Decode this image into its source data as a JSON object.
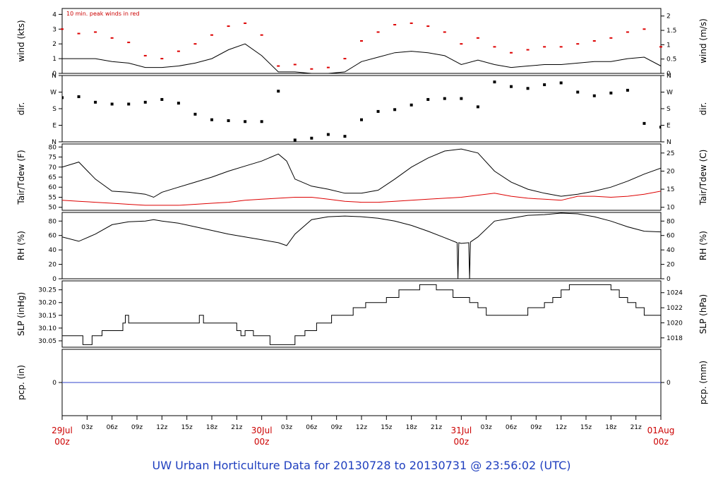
{
  "footer": "UW Urban Horticulture Data for 20130728  to  20130731 @ 23:56:02  (UTC)",
  "colors": {
    "primary": "#000000",
    "dewpoint": "#dd0000",
    "peak": "#dd0000",
    "precip": "#3344cc",
    "footer": "#1f3fbf",
    "day_label": "#cc0000"
  },
  "x_axis": {
    "range_hours": [
      0,
      72
    ],
    "hour_ticks": [
      "03z",
      "06z",
      "09z",
      "12z",
      "15z",
      "18z",
      "21z"
    ],
    "day_labels": [
      {
        "top": "29Jul",
        "bottom": "00z",
        "hour": 0
      },
      {
        "top": "30Jul",
        "bottom": "00z",
        "hour": 24
      },
      {
        "top": "31Jul",
        "bottom": "00z",
        "hour": 48
      },
      {
        "top": "01Aug",
        "bottom": "00z",
        "hour": 72
      }
    ]
  },
  "chart_data": [
    {
      "type": "line",
      "id": "wind",
      "ylabel": "wind (kts)",
      "ylabel_right": "wind (m/s)",
      "annotation": "10 min. peak winds in red",
      "ylim": [
        0,
        4.4
      ],
      "yticks": [
        "0",
        "1",
        "2",
        "3",
        "4"
      ],
      "yticks_right": [
        "0",
        "0.5",
        "1",
        "1.5",
        "2"
      ],
      "ylim_right": [
        0,
        2.264
      ],
      "series": [
        {
          "name": "wind",
          "color": "#000000",
          "x_hours": [
            0,
            2,
            4,
            6,
            8,
            10,
            12,
            14,
            16,
            18,
            20,
            22,
            24,
            26,
            28,
            30,
            32,
            34,
            36,
            38,
            40,
            42,
            44,
            46,
            48,
            50,
            52,
            54,
            56,
            58,
            60,
            62,
            64,
            66,
            68,
            70,
            72
          ],
          "values": [
            1.0,
            1.0,
            1.0,
            0.8,
            0.7,
            0.4,
            0.4,
            0.5,
            0.7,
            1.0,
            1.6,
            2.0,
            1.2,
            0.1,
            0.1,
            0.0,
            0.0,
            0.1,
            0.8,
            1.1,
            1.4,
            1.5,
            1.4,
            1.2,
            0.6,
            0.9,
            0.6,
            0.4,
            0.5,
            0.6,
            0.6,
            0.7,
            0.8,
            0.8,
            1.0,
            1.1,
            0.5
          ]
        },
        {
          "name": "10 min. peak winds",
          "color": "#dd0000",
          "x_hours": [
            0,
            2,
            4,
            6,
            8,
            10,
            12,
            14,
            16,
            18,
            20,
            22,
            24,
            26,
            28,
            30,
            32,
            34,
            36,
            38,
            40,
            42,
            44,
            46,
            48,
            50,
            52,
            54,
            56,
            58,
            60,
            62,
            64,
            66,
            68,
            70,
            72
          ],
          "values": [
            3.0,
            2.7,
            2.8,
            2.4,
            2.1,
            1.2,
            1.0,
            1.5,
            2.0,
            2.6,
            3.2,
            3.4,
            2.6,
            0.5,
            0.6,
            0.3,
            0.4,
            1.0,
            2.2,
            2.8,
            3.3,
            3.4,
            3.2,
            2.8,
            2.0,
            2.4,
            1.8,
            1.4,
            1.6,
            1.8,
            1.8,
            2.0,
            2.2,
            2.4,
            2.8,
            3.0,
            1.8
          ]
        }
      ]
    },
    {
      "type": "scatter",
      "id": "dir",
      "ylabel": "dir.",
      "ylabel_right": "dir.",
      "ylim": [
        0,
        360
      ],
      "yticks": [
        "N",
        "E",
        "S",
        "W",
        "N"
      ],
      "yticks_right": [
        "N",
        "E",
        "S",
        "W",
        "N"
      ],
      "series": [
        {
          "name": "direction",
          "color": "#000000",
          "x_hours": [
            0,
            2,
            4,
            6,
            8,
            10,
            12,
            14,
            16,
            18,
            20,
            22,
            24,
            26,
            28,
            30,
            32,
            34,
            36,
            38,
            40,
            42,
            44,
            46,
            48,
            50,
            52,
            54,
            56,
            58,
            60,
            62,
            64,
            66,
            68,
            70,
            72
          ],
          "values": [
            240,
            245,
            215,
            205,
            205,
            215,
            230,
            210,
            150,
            120,
            115,
            110,
            110,
            275,
            10,
            20,
            40,
            30,
            120,
            165,
            175,
            200,
            230,
            235,
            235,
            190,
            325,
            300,
            290,
            310,
            320,
            270,
            250,
            265,
            280,
            100,
            80
          ]
        }
      ]
    },
    {
      "type": "line",
      "id": "temp",
      "ylabel": "Tair/Tdew (F)",
      "ylabel_right": "Tair/Tdew (C)",
      "ylim": [
        48.5,
        81.5
      ],
      "yticks": [
        "50",
        "55",
        "60",
        "65",
        "70",
        "75",
        "80"
      ],
      "yticks_right": [
        "10",
        "15",
        "20",
        "25"
      ],
      "series": [
        {
          "name": "Tair",
          "color": "#000000",
          "x_hours": [
            0,
            2,
            4,
            6,
            8,
            10,
            11,
            12,
            14,
            16,
            18,
            20,
            22,
            24,
            26,
            27,
            28,
            30,
            32,
            34,
            36,
            38,
            40,
            42,
            44,
            46,
            48,
            50,
            52,
            54,
            56,
            58,
            60,
            62,
            64,
            66,
            68,
            70,
            72
          ],
          "values": [
            70,
            72.5,
            64,
            58,
            57.5,
            56.5,
            55,
            57.5,
            60,
            62.5,
            65,
            68,
            70.5,
            73,
            76.5,
            73,
            64,
            60.5,
            59,
            57,
            57,
            58.5,
            64,
            70,
            74.5,
            78,
            79,
            77,
            68,
            62.5,
            59,
            57,
            55.5,
            56.5,
            58,
            60,
            63,
            66.5,
            69.5
          ]
        },
        {
          "name": "Tdew",
          "color": "#dd0000",
          "x_hours": [
            0,
            2,
            4,
            6,
            8,
            10,
            12,
            14,
            16,
            18,
            20,
            22,
            24,
            26,
            28,
            30,
            32,
            34,
            36,
            38,
            40,
            42,
            44,
            46,
            48,
            50,
            52,
            54,
            56,
            58,
            60,
            62,
            64,
            66,
            68,
            70,
            72
          ],
          "values": [
            53.5,
            53,
            52.5,
            52,
            51.5,
            51,
            51,
            51,
            51.5,
            52,
            52.5,
            53.5,
            54,
            54.5,
            55,
            55,
            54,
            53,
            52.5,
            52.5,
            53,
            53.5,
            54,
            54.5,
            55,
            56,
            57,
            55.5,
            54.5,
            54,
            53.5,
            55.5,
            55.5,
            55,
            55.5,
            56.5,
            58
          ]
        }
      ]
    },
    {
      "type": "line",
      "id": "rh",
      "ylabel": "RH (%)",
      "ylabel_right": "RH (%)",
      "ylim": [
        0,
        92
      ],
      "yticks": [
        "0",
        "20",
        "40",
        "60",
        "80"
      ],
      "yticks_right": [
        "0",
        "20",
        "40",
        "60",
        "80"
      ],
      "series": [
        {
          "name": "RH",
          "color": "#000000",
          "x_hours": [
            0,
            2,
            4,
            6,
            8,
            10,
            11,
            12,
            14,
            16,
            18,
            20,
            22,
            24,
            26,
            27,
            28,
            30,
            32,
            34,
            36,
            38,
            40,
            42,
            44,
            46,
            47.5,
            47.6,
            47.7,
            48,
            48.9,
            49.0,
            49.1,
            50,
            52,
            54,
            56,
            58,
            60,
            62,
            64,
            66,
            68,
            70,
            72
          ],
          "values": [
            58,
            52,
            62,
            75,
            79,
            80,
            82,
            80,
            77,
            72,
            67,
            62,
            58,
            54,
            50,
            46,
            62,
            82,
            86,
            87,
            86,
            84,
            80,
            74,
            66,
            57,
            50,
            0,
            50,
            49,
            50,
            0,
            51,
            58,
            80,
            84,
            88,
            89,
            91,
            90,
            86,
            80,
            72,
            66,
            65
          ]
        }
      ]
    },
    {
      "type": "line",
      "id": "slp",
      "ylabel": "SLP (inHg)",
      "ylabel_right": "SLP (hPa)",
      "ylim": [
        30.025,
        30.285
      ],
      "yticks": [
        "30.05",
        "30.10",
        "30.15",
        "30.20",
        "30.25"
      ],
      "yticks_right": [
        "1018",
        "1020",
        "1022",
        "1024"
      ],
      "series": [
        {
          "name": "SLP",
          "color": "#000000",
          "x_hours": [
            0,
            2,
            2.5,
            3,
            3.6,
            4.8,
            7.3,
            7.6,
            8,
            10,
            11.5,
            12,
            13.8,
            15,
            16.5,
            17,
            18,
            19.1,
            21,
            21.2,
            21.5,
            22,
            23,
            24,
            25,
            26,
            26.6,
            27.1,
            28,
            29.2,
            30,
            30.6,
            32,
            32.4,
            34,
            35,
            35.8,
            36.5,
            38,
            39,
            39.8,
            40.5,
            42,
            43,
            44,
            45,
            46,
            47,
            48,
            49,
            50,
            51,
            51.7,
            52,
            53,
            56,
            58,
            59,
            60,
            61,
            62,
            63,
            64,
            65,
            66,
            67,
            68,
            69,
            70,
            71,
            72
          ],
          "values": [
            30.07,
            30.07,
            30.035,
            30.035,
            30.07,
            30.09,
            30.12,
            30.15,
            30.12,
            30.12,
            30.12,
            30.12,
            30.12,
            30.12,
            30.15,
            30.12,
            30.12,
            30.12,
            30.09,
            30.09,
            30.07,
            30.09,
            30.07,
            30.07,
            30.035,
            30.035,
            30.035,
            30.035,
            30.07,
            30.09,
            30.09,
            30.12,
            30.12,
            30.15,
            30.15,
            30.18,
            30.18,
            30.2,
            30.2,
            30.22,
            30.22,
            30.25,
            30.25,
            30.27,
            30.27,
            30.25,
            30.25,
            30.22,
            30.22,
            30.2,
            30.18,
            30.15,
            30.15,
            30.15,
            30.15,
            30.18,
            30.2,
            30.22,
            30.25,
            30.27,
            30.27,
            30.27,
            30.27,
            30.27,
            30.25,
            30.22,
            30.2,
            30.18,
            30.15,
            30.15,
            30.15
          ]
        }
      ]
    },
    {
      "type": "line",
      "id": "pcp",
      "ylabel": "pcp. (in)",
      "ylabel_right": "pcp. (mm)",
      "ylim": [
        -1,
        1
      ],
      "yticks": [
        "0"
      ],
      "yticks_right": [
        "0"
      ],
      "series": [
        {
          "name": "pcp",
          "color": "#3344cc",
          "x_hours": [
            0,
            72
          ],
          "values": [
            0,
            0
          ]
        }
      ]
    }
  ]
}
